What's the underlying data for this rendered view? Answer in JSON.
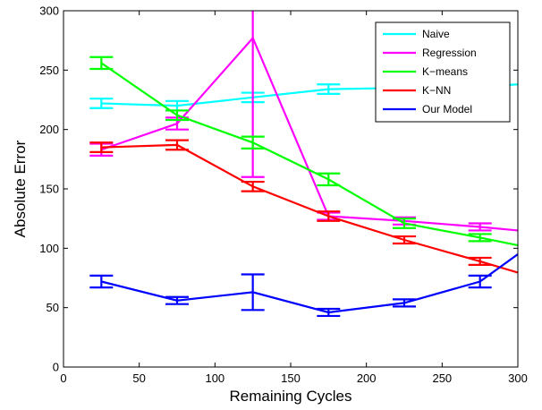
{
  "chart_data": {
    "type": "line",
    "title": "",
    "xlabel": "Remaining Cycles",
    "ylabel": "Absolute Error",
    "xlim": [
      0,
      300
    ],
    "ylim": [
      0,
      300
    ],
    "xticks": [
      0,
      50,
      100,
      150,
      200,
      250,
      300
    ],
    "yticks": [
      0,
      50,
      100,
      150,
      200,
      250,
      300
    ],
    "grid": false,
    "legend_position": "top-right",
    "x": [
      25,
      75,
      125,
      175,
      225,
      275,
      325
    ],
    "series": [
      {
        "name": "Naive",
        "color": "#00ffff",
        "values": [
          222,
          220,
          227,
          234,
          235,
          236,
          240
        ],
        "errors": [
          4,
          4,
          4,
          4,
          3,
          3,
          3
        ]
      },
      {
        "name": "Regression",
        "color": "#ff00ff",
        "values": [
          183,
          205,
          277,
          127,
          123,
          118,
          112
        ],
        "errors": [
          5,
          5,
          117,
          3,
          3,
          3,
          3
        ]
      },
      {
        "name": "K−means",
        "color": "#00ff00",
        "values": [
          256,
          212,
          189,
          158,
          121,
          109,
          96
        ],
        "errors": [
          5,
          4,
          5,
          5,
          4,
          3,
          3
        ]
      },
      {
        "name": "K−NN",
        "color": "#ff0000",
        "values": [
          185,
          187,
          152,
          127,
          107,
          89,
          70
        ],
        "errors": [
          4,
          4,
          4,
          4,
          3,
          3,
          3
        ]
      },
      {
        "name": "Our Model",
        "color": "#0000ff",
        "values": [
          72,
          56,
          63,
          46,
          54,
          72,
          118
        ],
        "errors": [
          5,
          3,
          15,
          3,
          3,
          5,
          5
        ]
      }
    ]
  }
}
